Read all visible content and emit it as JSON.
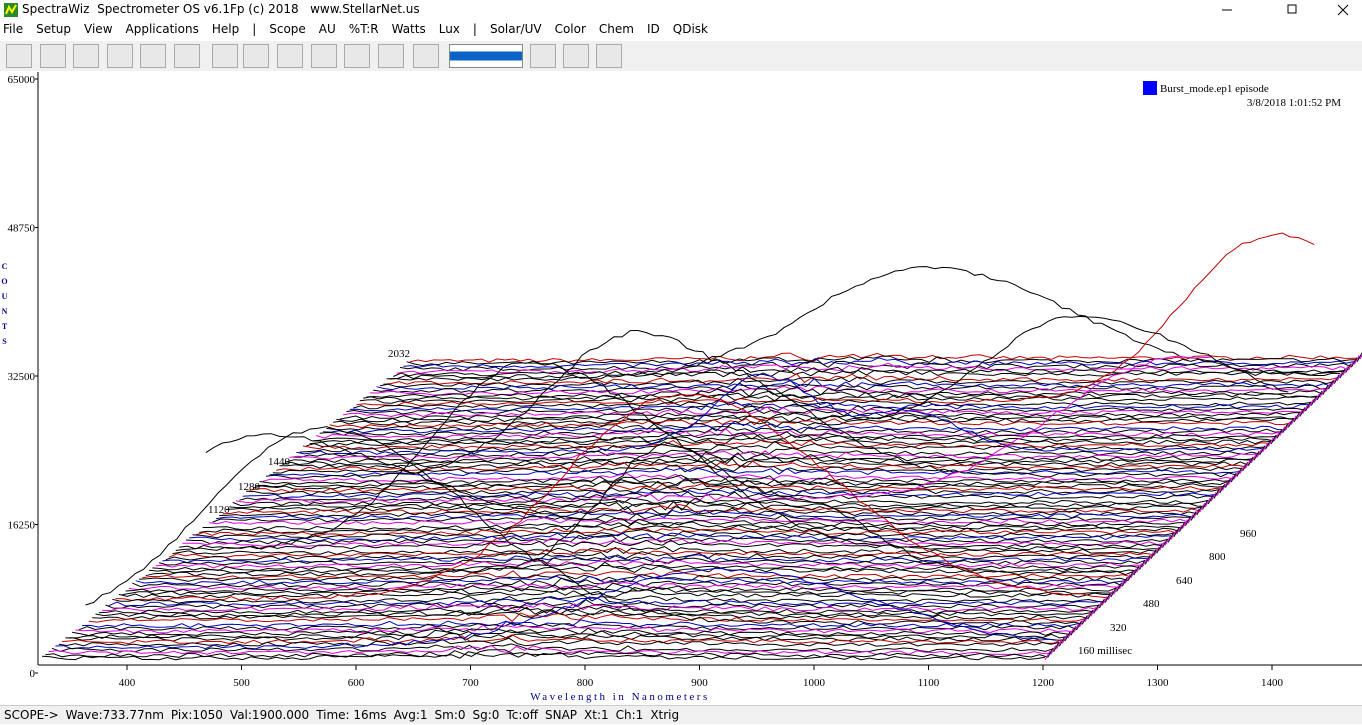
{
  "window": {
    "title": "SpectraWiz  Spectrometer OS v6.1Fp (c) 2018   www.StellarNet.us"
  },
  "menu": [
    "File",
    "Setup",
    "View",
    "Applications",
    "Help",
    "|",
    "Scope",
    "AU",
    "%T:R",
    "Watts",
    "Lux",
    "|",
    "Solar/UV",
    "Color",
    "Chem",
    "ID",
    "QDisk"
  ],
  "chart_data": {
    "type": "waterfall",
    "y_label": "COUNTS",
    "x_label": "Wavelength in Nanometers",
    "ylim": [
      0,
      65000
    ],
    "yticks": [
      0,
      16250,
      32500,
      48750,
      65000
    ],
    "xlim": [
      326,
      1479
    ],
    "xticks": [
      400,
      500,
      600,
      700,
      800,
      900,
      1000,
      1100,
      1200,
      1300,
      1400
    ],
    "depth_labels_right": [
      "160 millisec",
      "320",
      "480",
      "640",
      "800",
      "960"
    ],
    "depth_labels_left": [
      "1120",
      "1280",
      "1440",
      "2032"
    ],
    "legend": {
      "name": "Burst_mode.ep1 episode",
      "color": "#0000ff",
      "date": "3/8/2018 1:01:52 PM"
    }
  },
  "status": [
    "SCOPE->",
    "Wave:733.77nm",
    "Pix:1050",
    "Val:1900.000",
    "Time: 16ms",
    "Avg:1",
    "Sm:0",
    "Sg:0",
    "Tc:off",
    "SNAP",
    "Xt:1",
    "Ch:1",
    "Xtrig"
  ]
}
